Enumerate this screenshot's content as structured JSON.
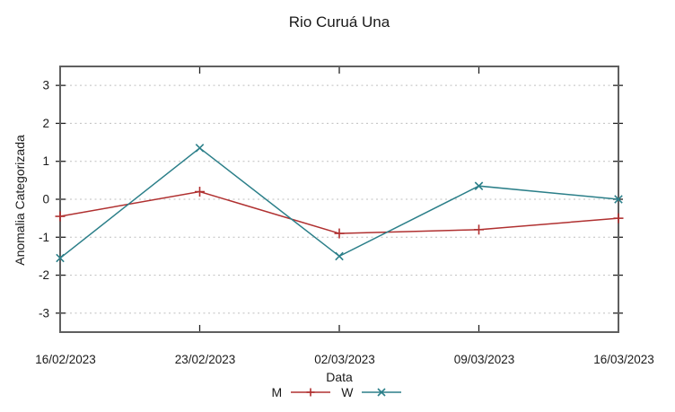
{
  "chart_data": {
    "type": "line",
    "title": "Rio Curuá Una",
    "xlabel": "Data",
    "ylabel": "Anomalia Categorizada",
    "categories": [
      "16/02/2023",
      "23/02/2023",
      "02/03/2023",
      "09/03/2023",
      "16/03/2023"
    ],
    "series": [
      {
        "name": "M",
        "color": "#b03030",
        "marker": "plus",
        "values": [
          -0.45,
          0.2,
          -0.9,
          -0.8,
          -0.5
        ]
      },
      {
        "name": "W",
        "color": "#2b7f89",
        "marker": "cross",
        "values": [
          -1.55,
          1.35,
          -1.5,
          0.35,
          0.0
        ]
      }
    ],
    "yticks": [
      -3,
      -2,
      -1,
      0,
      1,
      2,
      3
    ],
    "ylim": [
      -3.5,
      3.5
    ],
    "grid": "horizontal-dashed",
    "legend_position": "bottom-center",
    "colors": {
      "grid": "#bfbfbf",
      "border": "#5f5f5f",
      "tick": "#222222",
      "text": "#1a1a1a",
      "background": "#ffffff"
    }
  }
}
